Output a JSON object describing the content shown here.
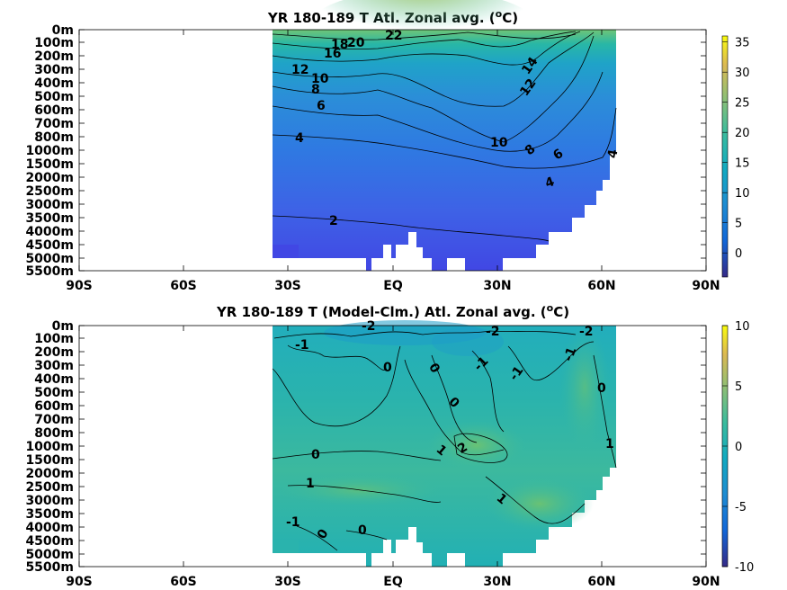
{
  "chart_data": [
    {
      "type": "heatmap",
      "title": "YR 180-189 T Atl. Zonal avg. (",
      "title_unit_sup": "o",
      "title_unit_tail": "C)",
      "x_ticks": [
        "90S",
        "60S",
        "30S",
        "EQ",
        "30N",
        "60N",
        "90N"
      ],
      "xlim": [
        -90,
        90
      ],
      "y_ticks": [
        "0m",
        "100m",
        "200m",
        "300m",
        "400m",
        "500m",
        "600m",
        "700m",
        "800m",
        "1000m",
        "1500m",
        "2000m",
        "2500m",
        "3000m",
        "3500m",
        "4000m",
        "4500m",
        "5000m",
        "5500m"
      ],
      "colorbar_ticks": [
        "35",
        "30",
        "25",
        "20",
        "15",
        "10",
        "5",
        "0"
      ],
      "colorbar_values": [
        35,
        30,
        25,
        20,
        15,
        10,
        5,
        0
      ],
      "clim": [
        -4,
        36
      ],
      "data_lat_range": [
        -35,
        64
      ],
      "contour_labels": [
        "22",
        "20",
        "18",
        "16",
        "14",
        "12",
        "12",
        "10",
        "10",
        "8",
        "8",
        "6",
        "6",
        "4",
        "4",
        "4",
        "2"
      ]
    },
    {
      "type": "heatmap",
      "title": "YR 180-189 T (Model-Clm.) Atl. Zonal avg. (",
      "title_unit_sup": "o",
      "title_unit_tail": "C)",
      "x_ticks": [
        "90S",
        "60S",
        "30S",
        "EQ",
        "30N",
        "60N",
        "90N"
      ],
      "xlim": [
        -90,
        90
      ],
      "y_ticks": [
        "0m",
        "100m",
        "200m",
        "300m",
        "400m",
        "500m",
        "600m",
        "700m",
        "800m",
        "1000m",
        "1500m",
        "2000m",
        "2500m",
        "3000m",
        "3500m",
        "4000m",
        "4500m",
        "5000m",
        "5500m"
      ],
      "colorbar_ticks": [
        "10",
        "5",
        "0",
        "-5",
        "-10"
      ],
      "colorbar_values": [
        10,
        5,
        0,
        -5,
        -10
      ],
      "clim": [
        -10,
        10
      ],
      "data_lat_range": [
        -35,
        64
      ],
      "contour_labels": [
        "-2",
        "-2",
        "-2",
        "-1",
        "-1",
        "-1",
        "-1",
        "-1",
        "0",
        "0",
        "0",
        "0",
        "0",
        "0",
        "0",
        "1",
        "1",
        "1",
        "1",
        "2"
      ]
    }
  ]
}
